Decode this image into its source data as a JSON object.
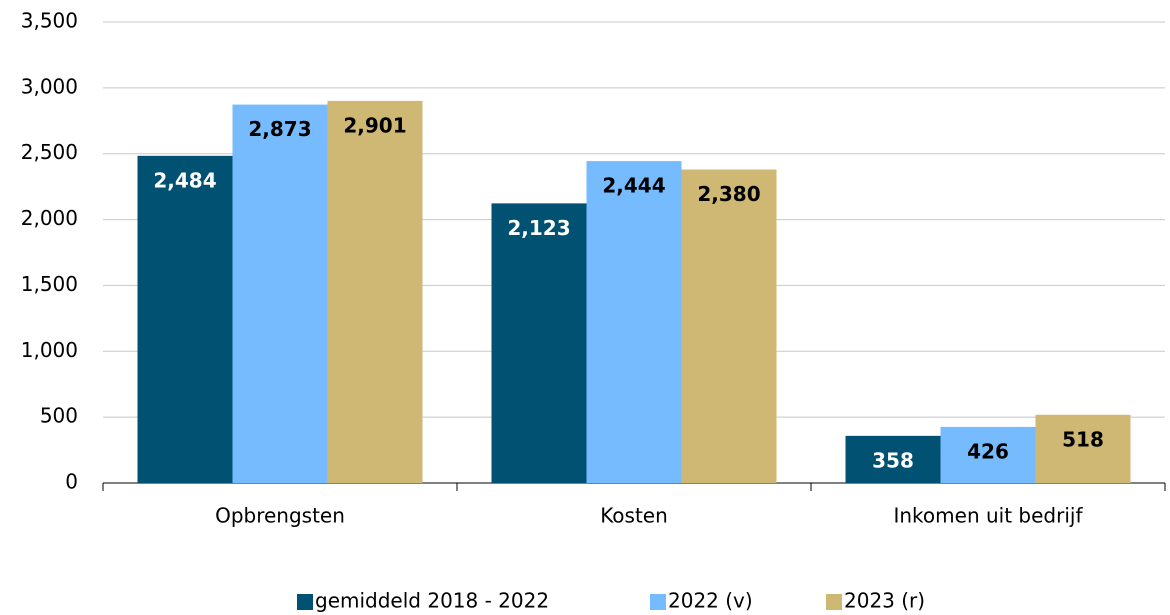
{
  "chart_data": {
    "type": "bar",
    "categories": [
      "Opbrengsten",
      "Kosten",
      "Inkomen uit bedrijf"
    ],
    "series": [
      {
        "name": "gemiddeld 2018 - 2022",
        "color": "#005172",
        "values": [
          2484,
          2123,
          358
        ],
        "value_labels": [
          "2,484",
          "2,123",
          "358"
        ]
      },
      {
        "name": "2022 (v)",
        "color": "#75bbfd",
        "values": [
          2873,
          2444,
          426
        ],
        "value_labels": [
          "2,873",
          "2,444",
          "426"
        ]
      },
      {
        "name": "2023 (r)",
        "color": "#cfb874",
        "values": [
          2901,
          2380,
          518
        ],
        "value_labels": [
          "2,901",
          "2,380",
          "518"
        ]
      }
    ],
    "ylim": [
      0,
      3500
    ],
    "yticks": [
      0,
      500,
      {
        "value": 1000,
        "label": "1,000"
      },
      {
        "value": 1500,
        "label": "1,500"
      },
      {
        "value": 2000,
        "label": "2,000"
      },
      {
        "value": 2500,
        "label": "2,500"
      },
      {
        "value": 3000,
        "label": "3,000"
      },
      {
        "value": 3500,
        "label": "3,500"
      }
    ],
    "grid": true,
    "legend": "bottom"
  }
}
